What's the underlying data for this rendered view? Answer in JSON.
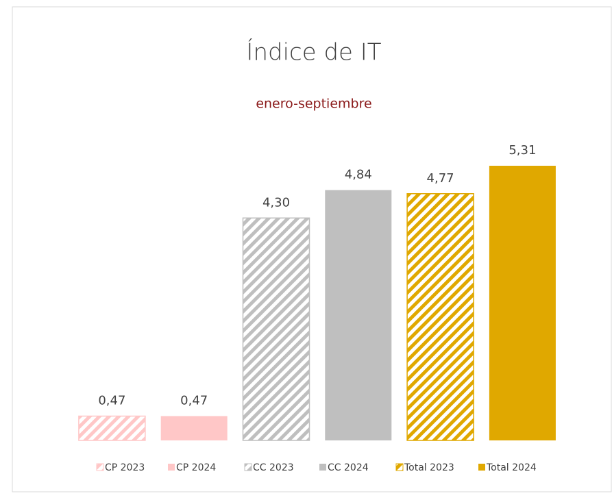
{
  "chart_data": {
    "type": "bar",
    "title": "Índice de IT",
    "subtitle": "enero-septiembre",
    "categories": [
      "CP 2023",
      "CP 2024",
      "CC 2023",
      "CC 2024",
      "Total 2023",
      "Total 2024"
    ],
    "values": [
      0.47,
      0.47,
      4.3,
      4.84,
      4.77,
      5.31
    ],
    "value_labels": [
      "0,47",
      "0,47",
      "4,30",
      "4,84",
      "4,77",
      "5,31"
    ],
    "colors": [
      "#ffc7c7",
      "#ffc7c7",
      "#bfbfbf",
      "#bfbfbf",
      "#e0a800",
      "#e0a800"
    ],
    "hatched": [
      true,
      false,
      true,
      false,
      true,
      false
    ],
    "legend": "bottom"
  }
}
